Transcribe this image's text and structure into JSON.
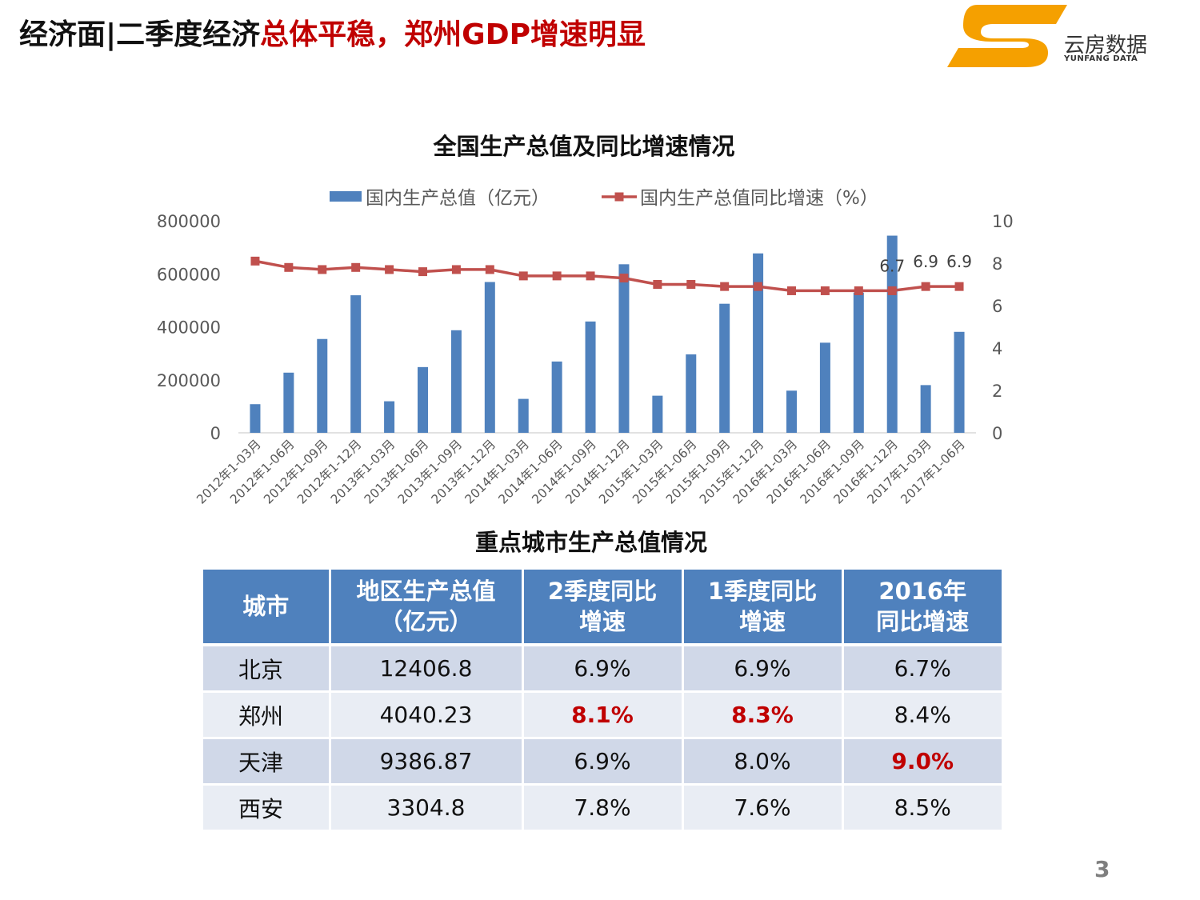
{
  "header": {
    "title_part1": "经济面|二季度经济",
    "title_part2": "总体平稳，郑州GDP增速明显",
    "logo_text": "云房数据",
    "logo_subtext": "YUNFANG DATA"
  },
  "colors": {
    "bar": "#4f81bd",
    "line": "#c0504d",
    "accent_red": "#c00000",
    "logo_orange": "#f5a000"
  },
  "chart_data": {
    "type": "bar+line",
    "title": "全国生产总值及同比增速情况",
    "categories": [
      "2012年1-03月",
      "2012年1-06月",
      "2012年1-09月",
      "2012年1-12月",
      "2013年1-03月",
      "2013年1-06月",
      "2013年1-09月",
      "2013年1-12月",
      "2014年1-03月",
      "2014年1-06月",
      "2014年1-09月",
      "2014年1-12月",
      "2015年1-03月",
      "2015年1-06月",
      "2015年1-09月",
      "2015年1-12月",
      "2016年1-03月",
      "2016年1-06月",
      "2016年1-09月",
      "2016年1-12月",
      "2017年1-03月",
      "2017年1-06月"
    ],
    "series": [
      {
        "name": "国内生产总值（亿元）",
        "axis": "left",
        "kind": "bar",
        "values": [
          108000,
          227000,
          354000,
          519000,
          119000,
          248000,
          387000,
          569000,
          128000,
          269000,
          420000,
          636000,
          140000,
          296000,
          487000,
          677000,
          159000,
          340000,
          529000,
          744000,
          180000,
          381000
        ]
      },
      {
        "name": "国内生产总值同比增速（%）",
        "axis": "right",
        "kind": "line",
        "values": [
          8.1,
          7.8,
          7.7,
          7.8,
          7.7,
          7.6,
          7.7,
          7.7,
          7.4,
          7.4,
          7.4,
          7.3,
          7.0,
          7.0,
          6.9,
          6.9,
          6.7,
          6.7,
          6.7,
          6.7,
          6.9,
          6.9
        ]
      }
    ],
    "data_labels": [
      {
        "index": 19,
        "text": "6.7"
      },
      {
        "index": 20,
        "text": "6.9"
      },
      {
        "index": 21,
        "text": "6.9"
      }
    ],
    "y_left": {
      "min": 0,
      "max": 800000,
      "ticks": [
        "0",
        "200000",
        "400000",
        "600000",
        "800000"
      ]
    },
    "y_right": {
      "min": 0,
      "max": 10,
      "ticks": [
        "0",
        "2",
        "4",
        "6",
        "8",
        "10"
      ]
    },
    "legend_position": "top-center"
  },
  "table": {
    "title": "重点城市生产总值情况",
    "headers": [
      [
        "城市"
      ],
      [
        "地区生产总值",
        "（亿元）"
      ],
      [
        "2季度同比",
        "增速"
      ],
      [
        "1季度同比",
        "增速"
      ],
      [
        "2016年",
        "同比增速"
      ]
    ],
    "rows": [
      {
        "city": "北京",
        "gdp": "12406.8",
        "q2": "6.9%",
        "q1": "6.9%",
        "y2016": "6.7%"
      },
      {
        "city": "郑州",
        "gdp": "4040.23",
        "q2": "8.1%",
        "q1": "8.3%",
        "y2016": "8.4%"
      },
      {
        "city": "天津",
        "gdp": "9386.87",
        "q2": "6.9%",
        "q1": "8.0%",
        "y2016": "9.0%"
      },
      {
        "city": "西安",
        "gdp": "3304.8",
        "q2": "7.8%",
        "q1": "7.6%",
        "y2016": "8.5%"
      }
    ]
  },
  "page_number": "3"
}
